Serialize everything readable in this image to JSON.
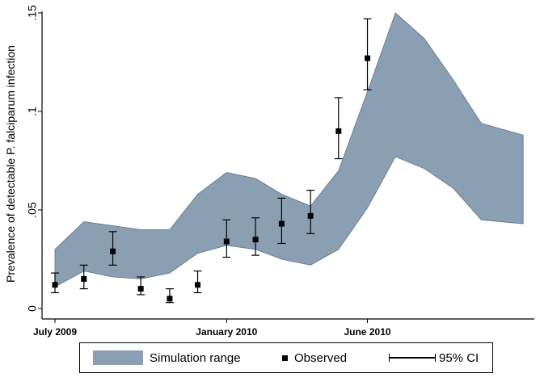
{
  "chart_data": {
    "type": "area",
    "ylabel": "Prevalence of detectable P. falciparum infection",
    "xlabel": "",
    "ylim": [
      0,
      0.15
    ],
    "y_ticks": [
      0,
      0.05,
      0.1,
      0.15
    ],
    "y_tick_labels": [
      "0",
      ".05",
      ".1",
      ".15"
    ],
    "x_range": [
      "2009-07-01",
      "2010-11-20"
    ],
    "x_ticks": [
      {
        "date": "2009-07-01",
        "label": "July 2009"
      },
      {
        "date": "2010-01-01",
        "label": "January 2010"
      },
      {
        "date": "2010-06-01",
        "label": "June 2010"
      }
    ],
    "band": {
      "name": "Simulation range",
      "color": "#8b9fb2",
      "x": [
        "2009-07-01",
        "2009-08-01",
        "2009-09-01",
        "2009-10-01",
        "2009-11-01",
        "2009-12-01",
        "2010-01-01",
        "2010-02-01",
        "2010-03-01",
        "2010-04-01",
        "2010-05-01",
        "2010-06-01",
        "2010-07-01",
        "2010-08-01",
        "2010-09-01",
        "2010-10-01",
        "2010-11-15"
      ],
      "upper": [
        0.03,
        0.044,
        0.042,
        0.04,
        0.04,
        0.058,
        0.069,
        0.066,
        0.058,
        0.052,
        0.07,
        0.11,
        0.15,
        0.137,
        0.116,
        0.094,
        0.088
      ],
      "lower": [
        0.011,
        0.019,
        0.016,
        0.015,
        0.018,
        0.028,
        0.032,
        0.03,
        0.025,
        0.022,
        0.03,
        0.051,
        0.077,
        0.071,
        0.061,
        0.045,
        0.043
      ]
    },
    "series": [
      {
        "name": "Observed",
        "marker": "square",
        "points": [
          {
            "x": "2009-07-01",
            "y": 0.012,
            "lo": 0.008,
            "hi": 0.018
          },
          {
            "x": "2009-08-01",
            "y": 0.015,
            "lo": 0.01,
            "hi": 0.022
          },
          {
            "x": "2009-09-01",
            "y": 0.029,
            "lo": 0.022,
            "hi": 0.039
          },
          {
            "x": "2009-10-01",
            "y": 0.01,
            "lo": 0.007,
            "hi": 0.016
          },
          {
            "x": "2009-11-01",
            "y": 0.005,
            "lo": 0.003,
            "hi": 0.01
          },
          {
            "x": "2009-12-01",
            "y": 0.012,
            "lo": 0.008,
            "hi": 0.019
          },
          {
            "x": "2010-01-01",
            "y": 0.034,
            "lo": 0.026,
            "hi": 0.045
          },
          {
            "x": "2010-02-01",
            "y": 0.035,
            "lo": 0.027,
            "hi": 0.046
          },
          {
            "x": "2010-03-01",
            "y": 0.043,
            "lo": 0.033,
            "hi": 0.056
          },
          {
            "x": "2010-04-01",
            "y": 0.047,
            "lo": 0.038,
            "hi": 0.06
          },
          {
            "x": "2010-05-01",
            "y": 0.09,
            "lo": 0.076,
            "hi": 0.107
          },
          {
            "x": "2010-06-01",
            "y": 0.127,
            "lo": 0.111,
            "hi": 0.147
          }
        ]
      }
    ],
    "legend": {
      "position": "bottom",
      "items": [
        "Simulation range",
        "Observed",
        "95% CI"
      ]
    },
    "grid": false
  }
}
